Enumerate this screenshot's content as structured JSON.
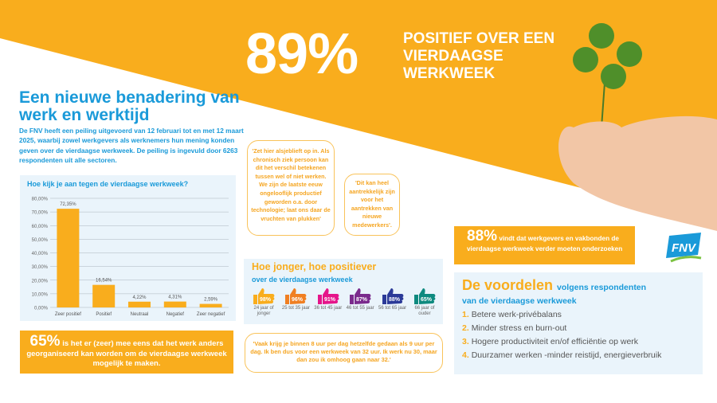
{
  "colors": {
    "orange": "#f9ad1d",
    "blue": "#1a9ad9",
    "lightblue": "#eaf4fb"
  },
  "hero": {
    "percent": "89%",
    "text": "POSITIEF OVER EEN VIERDAAGSE WERKWEEK"
  },
  "intro": {
    "title": "Een nieuwe benadering van werk en werktijd",
    "body": "De FNV heeft een peiling uitgevoerd van 12 februari tot en met 12 maart 2025, waarbij zowel werkgevers als werknemers hun mening konden geven over de vierdaagse werkweek. De peiling is ingevuld door 6263 respondenten uit alle sectoren."
  },
  "chart_data": {
    "type": "bar",
    "title": "Hoe kijk je aan tegen de vierdaagse werkweek?",
    "categories": [
      "Zeer positief",
      "Positief",
      "Neutraal",
      "Negatief",
      "Zeer negatief"
    ],
    "values": [
      72.35,
      16.54,
      4.22,
      4.31,
      2.59
    ],
    "value_labels": [
      "72,35%",
      "16,54%",
      "4,22%",
      "4,31%",
      "2,59%"
    ],
    "ylim": [
      0,
      80
    ],
    "yticks": [
      "0,00%",
      "10,00%",
      "20,00%",
      "30,00%",
      "40,00%",
      "50,00%",
      "60,00%",
      "70,00%",
      "80,00%"
    ],
    "grid": true
  },
  "stat65": {
    "percent": "65%",
    "text": "is het er (zeer) mee eens dat het werk anders georganiseerd kan worden om de vierdaagse werkweek mogelijk te maken."
  },
  "quotes": [
    "'Zet hier alsjeblieft op in. Als chronisch ziek persoon kan dit het verschil betekenen tussen wel of niet werken. We zijn de laatste eeuw ongelooflijk productief geworden o.a. door technologie; laat ons daar de vruchten van plukken'",
    "'Dit kan heel aantrekkelijk zijn voor het aantrekken van nieuwe medewerkers'.",
    "'Vaak krijg je binnen 8 uur per dag hetzelfde gedaan als 9 uur per dag. Ik ben dus voor een werkweek van 32 uur. Ik werk nu 30, maar dan zou ik omhoog gaan naar 32.'"
  ],
  "age": {
    "title": "Hoe jonger, hoe positiever",
    "subtitle": "over de vierdaagse werkweek",
    "groups": [
      {
        "pct": "98%",
        "label": "24 jaar of jonger",
        "color": "#f9ad1d"
      },
      {
        "pct": "96%",
        "label": "25 tot 35 jaar",
        "color": "#f07f22"
      },
      {
        "pct": "91%",
        "label": "36 tot 45 jaar",
        "color": "#e5158a"
      },
      {
        "pct": "87%",
        "label": "46 tot 55 jaar",
        "color": "#7a2a8c"
      },
      {
        "pct": "88%",
        "label": "56 tot 65 jaar",
        "color": "#2b3a98"
      },
      {
        "pct": "65%",
        "label": "66 jaar of ouder",
        "color": "#0e8a7f"
      }
    ]
  },
  "stat88": {
    "percent": "88%",
    "text": "vindt dat werkgevers en vakbonden de vierdaagse werkweek verder moeten onderzoeken"
  },
  "voordelen": {
    "title": "De voordelen",
    "title_rest": "volgens respondenten",
    "subtitle": "van de vierdaagse werkweek",
    "items": [
      {
        "n": "1.",
        "text": "Betere werk-privébalans"
      },
      {
        "n": "2.",
        "text": "Minder stress en burn-out"
      },
      {
        "n": "3.",
        "text": "Hogere productiviteit en/of efficiëntie op werk"
      },
      {
        "n": "4.",
        "text": "Duurzamer werken -minder reistijd, energieverbruik"
      }
    ]
  },
  "logo": "FNV"
}
